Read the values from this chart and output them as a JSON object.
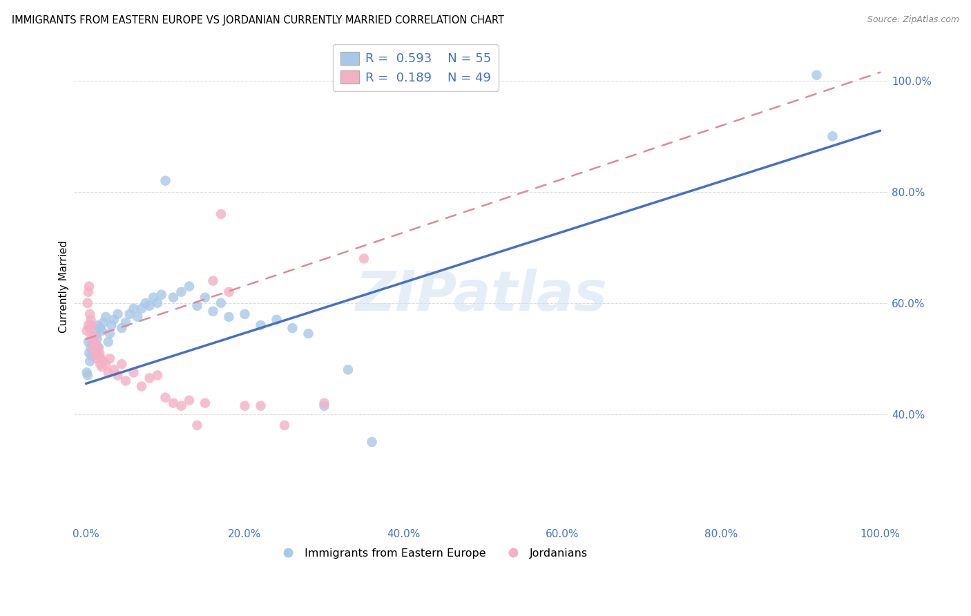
{
  "title": "IMMIGRANTS FROM EASTERN EUROPE VS JORDANIAN CURRENTLY MARRIED CORRELATION CHART",
  "source": "Source: ZipAtlas.com",
  "ylabel": "Currently Married",
  "blue_R": 0.593,
  "blue_N": 55,
  "pink_R": 0.189,
  "pink_N": 49,
  "blue_dot_color": "#a8c8e8",
  "blue_line_color": "#4472c4",
  "pink_dot_color": "#f4b0c4",
  "pink_line_color": "#e08898",
  "watermark_text": "ZIPatlas",
  "blue_scatter_x": [
    0.001,
    0.002,
    0.003,
    0.004,
    0.005,
    0.006,
    0.007,
    0.008,
    0.009,
    0.01,
    0.011,
    0.012,
    0.013,
    0.014,
    0.015,
    0.016,
    0.018,
    0.02,
    0.022,
    0.025,
    0.028,
    0.03,
    0.032,
    0.035,
    0.04,
    0.045,
    0.05,
    0.055,
    0.06,
    0.065,
    0.07,
    0.075,
    0.08,
    0.085,
    0.09,
    0.095,
    0.1,
    0.11,
    0.12,
    0.13,
    0.14,
    0.15,
    0.16,
    0.17,
    0.18,
    0.2,
    0.22,
    0.24,
    0.26,
    0.28,
    0.3,
    0.33,
    0.36,
    0.92,
    0.94
  ],
  "blue_scatter_y": [
    0.475,
    0.47,
    0.53,
    0.51,
    0.495,
    0.52,
    0.505,
    0.53,
    0.515,
    0.54,
    0.525,
    0.51,
    0.545,
    0.535,
    0.56,
    0.52,
    0.555,
    0.55,
    0.565,
    0.575,
    0.53,
    0.545,
    0.56,
    0.57,
    0.58,
    0.555,
    0.565,
    0.58,
    0.59,
    0.575,
    0.59,
    0.6,
    0.595,
    0.61,
    0.6,
    0.615,
    0.82,
    0.61,
    0.62,
    0.63,
    0.595,
    0.61,
    0.585,
    0.6,
    0.575,
    0.58,
    0.56,
    0.57,
    0.555,
    0.545,
    0.415,
    0.48,
    0.35,
    1.01,
    0.9
  ],
  "pink_scatter_x": [
    0.001,
    0.002,
    0.003,
    0.003,
    0.004,
    0.005,
    0.005,
    0.006,
    0.007,
    0.007,
    0.008,
    0.009,
    0.01,
    0.011,
    0.012,
    0.013,
    0.014,
    0.015,
    0.016,
    0.017,
    0.018,
    0.019,
    0.02,
    0.022,
    0.025,
    0.028,
    0.03,
    0.035,
    0.04,
    0.045,
    0.05,
    0.06,
    0.07,
    0.08,
    0.09,
    0.1,
    0.11,
    0.12,
    0.13,
    0.14,
    0.15,
    0.16,
    0.17,
    0.18,
    0.2,
    0.22,
    0.25,
    0.3,
    0.35
  ],
  "pink_scatter_y": [
    0.55,
    0.6,
    0.62,
    0.56,
    0.63,
    0.555,
    0.58,
    0.57,
    0.54,
    0.56,
    0.535,
    0.52,
    0.54,
    0.51,
    0.525,
    0.5,
    0.515,
    0.52,
    0.505,
    0.51,
    0.49,
    0.5,
    0.485,
    0.495,
    0.49,
    0.475,
    0.5,
    0.48,
    0.47,
    0.49,
    0.46,
    0.475,
    0.45,
    0.465,
    0.47,
    0.43,
    0.42,
    0.415,
    0.425,
    0.38,
    0.42,
    0.64,
    0.76,
    0.62,
    0.415,
    0.415,
    0.38,
    0.42,
    0.68
  ]
}
